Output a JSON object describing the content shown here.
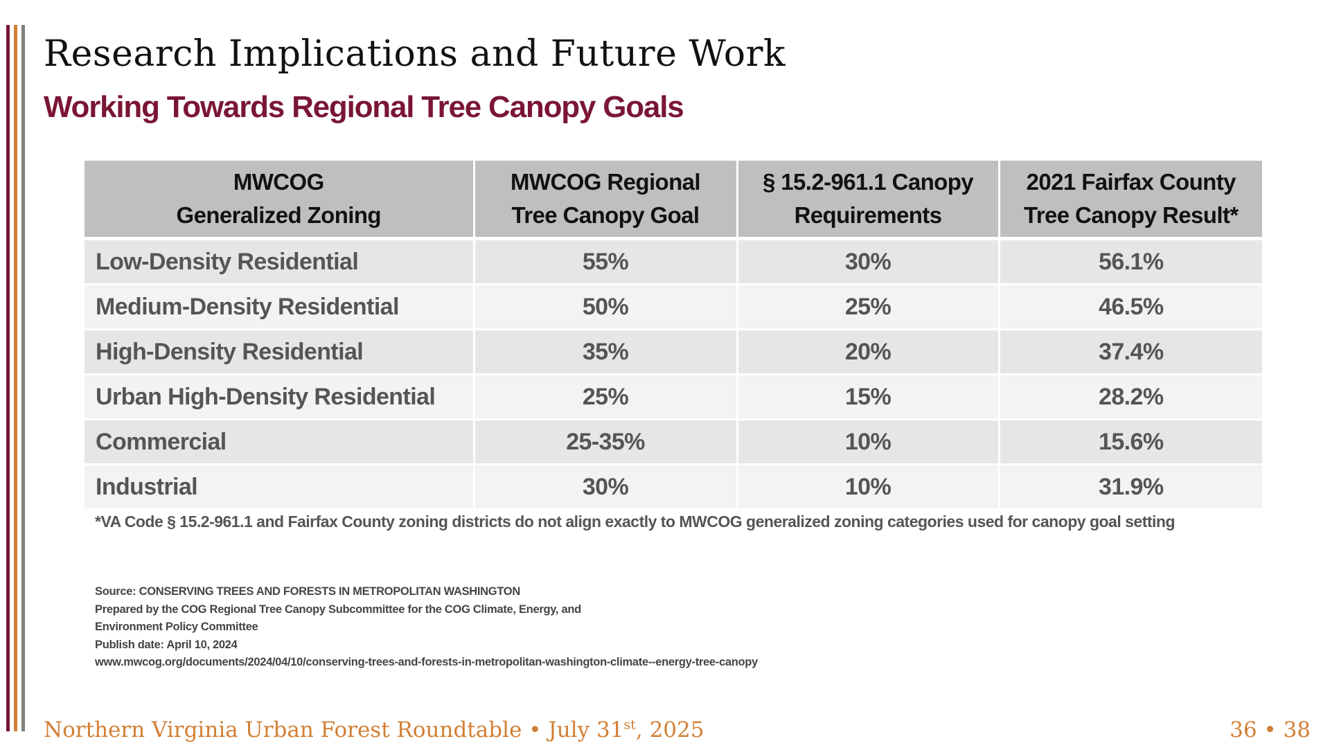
{
  "slide": {
    "title": "Research Implications and Future Work",
    "subtitle": "Working Towards Regional Tree Canopy Goals"
  },
  "table": {
    "headers": [
      "MWCOG\nGeneralized Zoning",
      "MWCOG Regional\nTree Canopy Goal",
      "§ 15.2-961.1 Canopy\nRequirements",
      "2021 Fairfax County\nTree Canopy Result*"
    ],
    "rows": [
      {
        "zoning": "Low-Density Residential",
        "goal": "55%",
        "requirement": "30%",
        "result": "56.1%"
      },
      {
        "zoning": "Medium-Density Residential",
        "goal": "50%",
        "requirement": "25%",
        "result": "46.5%"
      },
      {
        "zoning": "High-Density Residential",
        "goal": "35%",
        "requirement": "20%",
        "result": "37.4%"
      },
      {
        "zoning": "Urban High-Density Residential",
        "goal": "25%",
        "requirement": "15%",
        "result": "28.2%"
      },
      {
        "zoning": "Commercial",
        "goal": "25-35%",
        "requirement": "10%",
        "result": "15.6%"
      },
      {
        "zoning": "Industrial",
        "goal": "30%",
        "requirement": "10%",
        "result": "31.9%"
      }
    ]
  },
  "footnote": "*VA Code § 15.2-961.1 and Fairfax County zoning districts do not align exactly to MWCOG generalized zoning categories used for canopy goal setting",
  "source": {
    "line1": "Source: CONSERVING TREES AND FORESTS IN METROPOLITAN WASHINGTON",
    "line2": "Prepared by the COG Regional Tree Canopy Subcommittee for the COG Climate, Energy, and",
    "line3": "Environment Policy Committee",
    "line4": "Publish date: April 10, 2024",
    "line5": "www.mwcog.org/documents/2024/04/10/conserving-trees-and-forests-in-metropolitan-washington-climate--energy-tree-canopy"
  },
  "footer": {
    "event": "Northern Virginia Urban Forest Roundtable • July 31",
    "date_suffix": "st",
    "year": ", 2025",
    "page": "36 • 38"
  },
  "colors": {
    "maroon": "#7a1634",
    "orange": "#d27f34",
    "gray": "#7f7f7f",
    "header_bg": "#bfbfbf",
    "row_dark": "#e6e6e6",
    "row_light": "#f3f3f3"
  }
}
